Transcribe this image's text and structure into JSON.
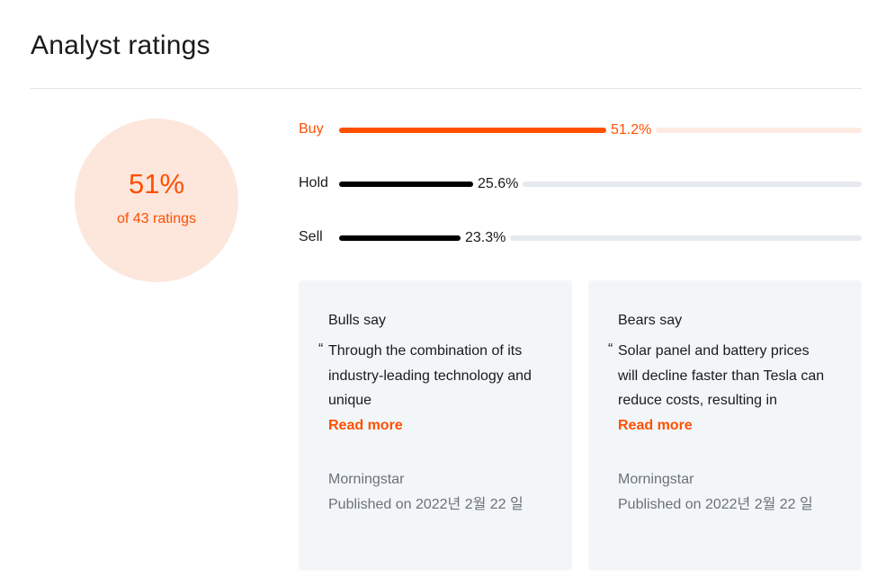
{
  "section": {
    "title": "Analyst ratings"
  },
  "summary": {
    "percent": "51%",
    "ratings_count": "of 43 ratings"
  },
  "ratings": [
    {
      "label": "Buy",
      "percent_text": "51.2%",
      "value": 51.2,
      "color": "#ff5000"
    },
    {
      "label": "Hold",
      "percent_text": "25.6%",
      "value": 25.6,
      "color": "#000000"
    },
    {
      "label": "Sell",
      "percent_text": "23.3%",
      "value": 23.3,
      "color": "#000000"
    }
  ],
  "bulls": {
    "title": "Bulls say",
    "quote_mark": "“",
    "quote": "Through the combination of its industry-leading technology and unique",
    "read_more": "Read more",
    "source": "Morningstar",
    "published": "Published on 2022년 2월 22 일"
  },
  "bears": {
    "title": "Bears say",
    "quote_mark": "“",
    "quote": "Solar panel and battery prices will decline faster than Tesla can reduce costs, resulting in",
    "read_more": "Read more",
    "source": "Morningstar",
    "published": "Published on 2022년 2월 22 일"
  },
  "colors": {
    "accent": "#ff5000",
    "circle_bg": "#fde6dc",
    "card_bg": "#f3f6f9"
  }
}
